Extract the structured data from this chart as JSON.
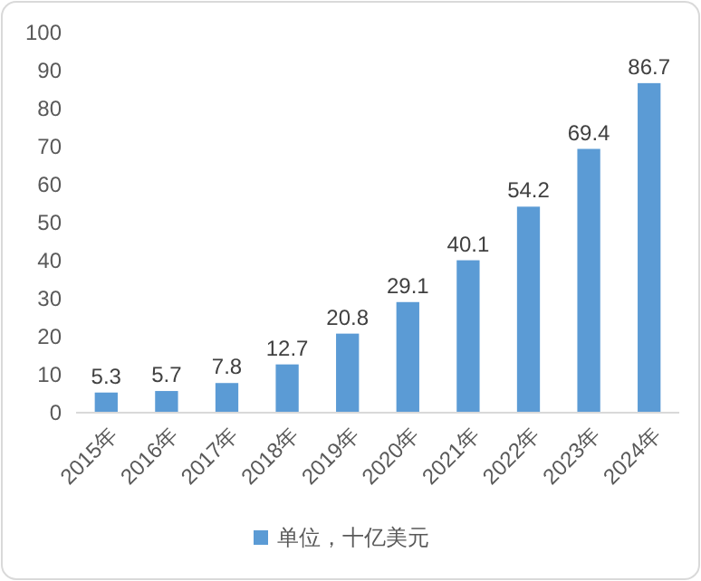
{
  "chart_data": {
    "type": "bar",
    "categories": [
      "2015年",
      "2016年",
      "2017年",
      "2018年",
      "2019年",
      "2020年",
      "2021年",
      "2022年",
      "2023年",
      "2024年"
    ],
    "series": [
      {
        "name": "单位，十亿美元",
        "color": "#5b9bd5",
        "values": [
          5.3,
          5.7,
          7.8,
          12.7,
          20.8,
          29.1,
          40.1,
          54.2,
          69.4,
          86.7
        ]
      }
    ],
    "ylim": [
      0,
      100
    ],
    "yticks": [
      0,
      10,
      20,
      30,
      40,
      50,
      60,
      70,
      80,
      90,
      100
    ],
    "grid": false,
    "legend": "bottom",
    "data_labels": true
  }
}
